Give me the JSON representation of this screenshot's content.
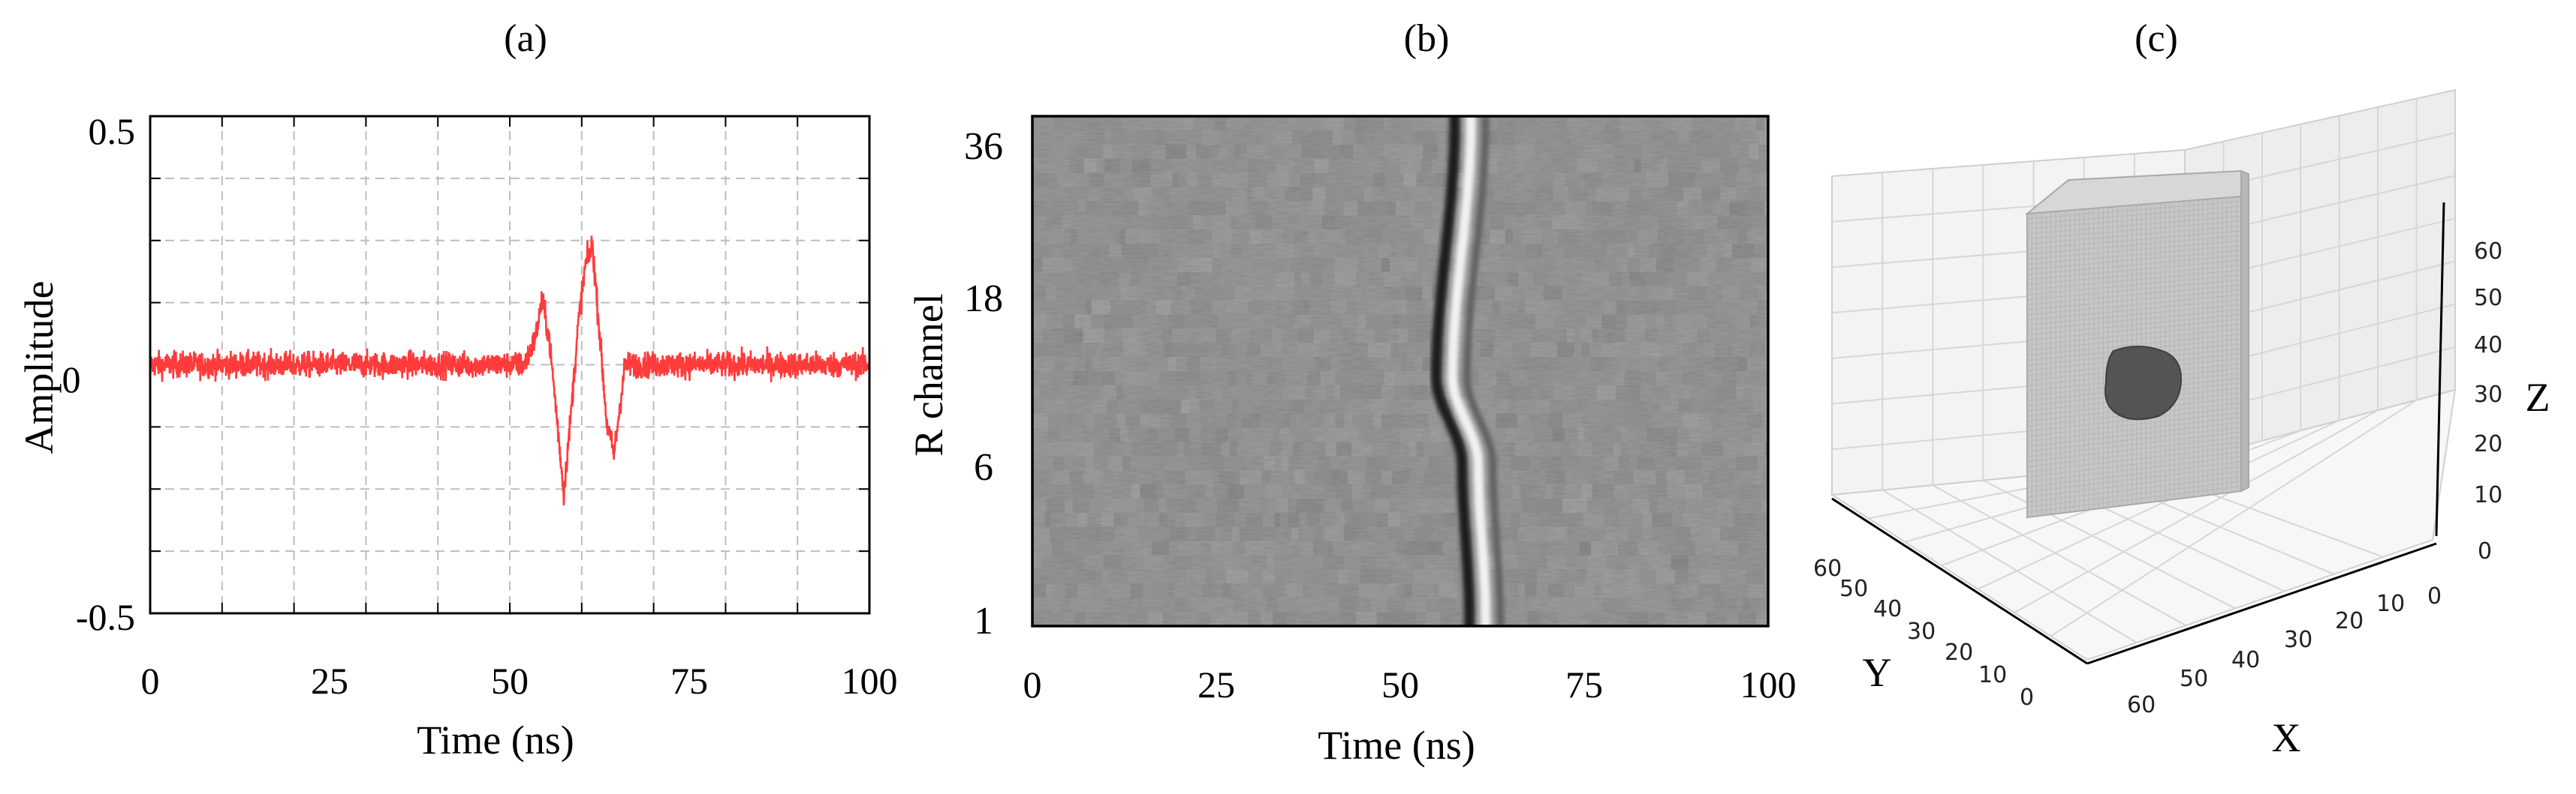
{
  "panels": {
    "a_label": "(a)",
    "b_label": "(b)",
    "c_label": "(c)"
  },
  "chart_data": [
    {
      "type": "line",
      "panel": "(a)",
      "xlabel": "Time (ns)",
      "ylabel": "Amplitude",
      "xlim": [
        0,
        100
      ],
      "ylim": [
        -0.5,
        0.5
      ],
      "xticks": [
        "0",
        "25",
        "50",
        "75",
        "100"
      ],
      "yticks": [
        "0.5",
        "0",
        "-0.5"
      ],
      "grid": true,
      "line_color": "#ff3b3b",
      "noise_amplitude": 0.045,
      "series": [
        {
          "x": [
            0,
            52,
            53.5,
            54.5,
            55.5,
            56.5,
            57.5,
            58.5,
            59.5,
            60.5,
            61.5,
            62.5,
            63.5,
            64.5,
            66,
            100
          ],
          "y": [
            0,
            0,
            0.05,
            0.13,
            0.05,
            -0.1,
            -0.26,
            -0.1,
            0.08,
            0.2,
            0.24,
            0.06,
            -0.12,
            -0.18,
            0,
            0
          ]
        }
      ]
    },
    {
      "type": "heatmap",
      "panel": "(b)",
      "xlabel": "Time (ns)",
      "ylabel": "R channel",
      "xlim": [
        0,
        100
      ],
      "xticks": [
        "0",
        "25",
        "50",
        "75",
        "100"
      ],
      "yticks": [
        "36",
        "18",
        "6",
        "1"
      ],
      "colormap": "gray",
      "channels": 36,
      "wavefront_time_ns": {
        "channel_1": 61,
        "channel_12": 60,
        "channel_18": 56.5,
        "channel_36": 59
      }
    },
    {
      "type": "3d-voxel",
      "panel": "(c)",
      "xlabel": "X",
      "ylabel": "Y",
      "zlabel": "Z",
      "xticks": [
        "60",
        "50",
        "40",
        "30",
        "20",
        "10",
        "0"
      ],
      "yticks": [
        "60",
        "50",
        "40",
        "30",
        "20",
        "10",
        "0"
      ],
      "zticks": [
        "60",
        "50",
        "40",
        "30",
        "20",
        "10",
        "0"
      ],
      "outer_block_color": "#bdbdbd",
      "inner_object_color": "#555555"
    }
  ]
}
